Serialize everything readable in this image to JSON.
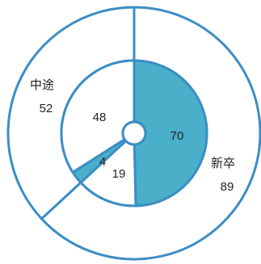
{
  "chart_data": {
    "type": "pie",
    "subtype": "double-donut",
    "title": "",
    "outer_ring": {
      "categories": [
        "新卒",
        "中途"
      ],
      "values": [
        89,
        52
      ]
    },
    "inner_ring": {
      "values": [
        70,
        19,
        4,
        48
      ],
      "highlighted": [
        true,
        false,
        true,
        false
      ]
    },
    "colors": {
      "outline": "#3c8dc4",
      "highlight": "#4aafc9",
      "background": "#ffffff"
    },
    "start_angle": "12 o'clock",
    "direction": "clockwise"
  }
}
